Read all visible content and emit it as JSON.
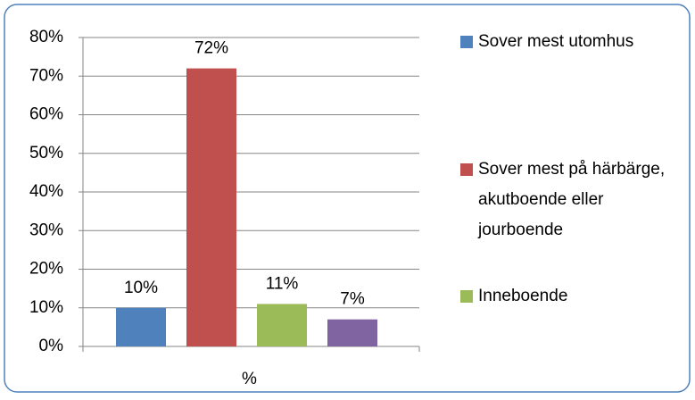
{
  "chart_data": {
    "type": "bar",
    "categories": [
      "%"
    ],
    "series": [
      {
        "name": "Sover mest utomhus",
        "color": "#4f81bd",
        "values": [
          10
        ],
        "value_labels": [
          "10%"
        ]
      },
      {
        "name": "Sover mest på härbärge, akutboende eller jourboende",
        "color": "#c0504d",
        "values": [
          72
        ],
        "value_labels": [
          "72%"
        ]
      },
      {
        "name": "Inneboende",
        "color": "#9bbb59",
        "values": [
          11
        ],
        "value_labels": [
          "11%"
        ]
      },
      {
        "name": null,
        "color": "#8064a2",
        "values": [
          7
        ],
        "value_labels": [
          "7%"
        ]
      }
    ],
    "ylim": [
      0,
      80
    ],
    "yticks": [
      {
        "value": 0,
        "label": "0%"
      },
      {
        "value": 10,
        "label": "10%"
      },
      {
        "value": 20,
        "label": "20%"
      },
      {
        "value": 30,
        "label": "30%"
      },
      {
        "value": 40,
        "label": "40%"
      },
      {
        "value": 50,
        "label": "50%"
      },
      {
        "value": 60,
        "label": "60%"
      },
      {
        "value": 70,
        "label": "70%"
      },
      {
        "value": 80,
        "label": "80%"
      }
    ],
    "grid": true,
    "legend": "right"
  }
}
